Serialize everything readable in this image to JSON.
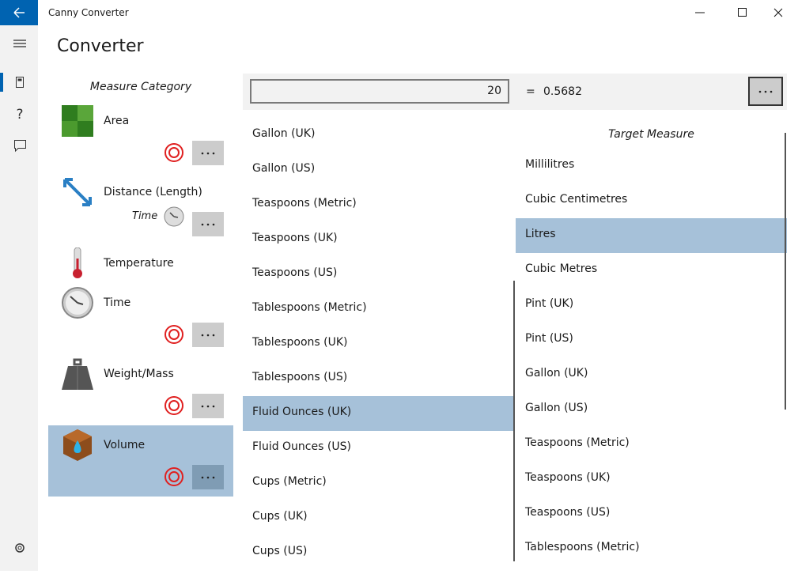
{
  "app": {
    "title": "Canny Converter"
  },
  "page": {
    "title": "Converter"
  },
  "categories": {
    "header": "Measure Category",
    "items": [
      {
        "label": "Area",
        "buttons": true
      },
      {
        "label": "Distance (Length)",
        "sublabel": "Time",
        "buttons": true
      },
      {
        "label": "Temperature",
        "buttons": false
      },
      {
        "label": "Time",
        "buttons": true
      },
      {
        "label": "Weight/Mass",
        "buttons": true
      },
      {
        "label": "Volume",
        "buttons": true
      }
    ],
    "selected": 5
  },
  "converter": {
    "input": "20",
    "equals": "=",
    "result": "0.5682"
  },
  "source": {
    "items": [
      "Gallon (UK)",
      "Gallon (US)",
      "Teaspoons (Metric)",
      "Teaspoons (UK)",
      "Teaspoons (US)",
      "Tablespoons (Metric)",
      "Tablespoons (UK)",
      "Tablespoons (US)",
      "Fluid Ounces (UK)",
      "Fluid Ounces (US)",
      "Cups (Metric)",
      "Cups (UK)",
      "Cups (US)"
    ],
    "selected": 8
  },
  "target": {
    "header": "Target Measure",
    "items": [
      "Millilitres",
      "Cubic Centimetres",
      "Litres",
      "Cubic Metres",
      "Pint (UK)",
      "Pint (US)",
      "Gallon (UK)",
      "Gallon (US)",
      "Teaspoons (Metric)",
      "Teaspoons (UK)",
      "Teaspoons (US)",
      "Tablespoons (Metric)"
    ],
    "selected": 2
  }
}
